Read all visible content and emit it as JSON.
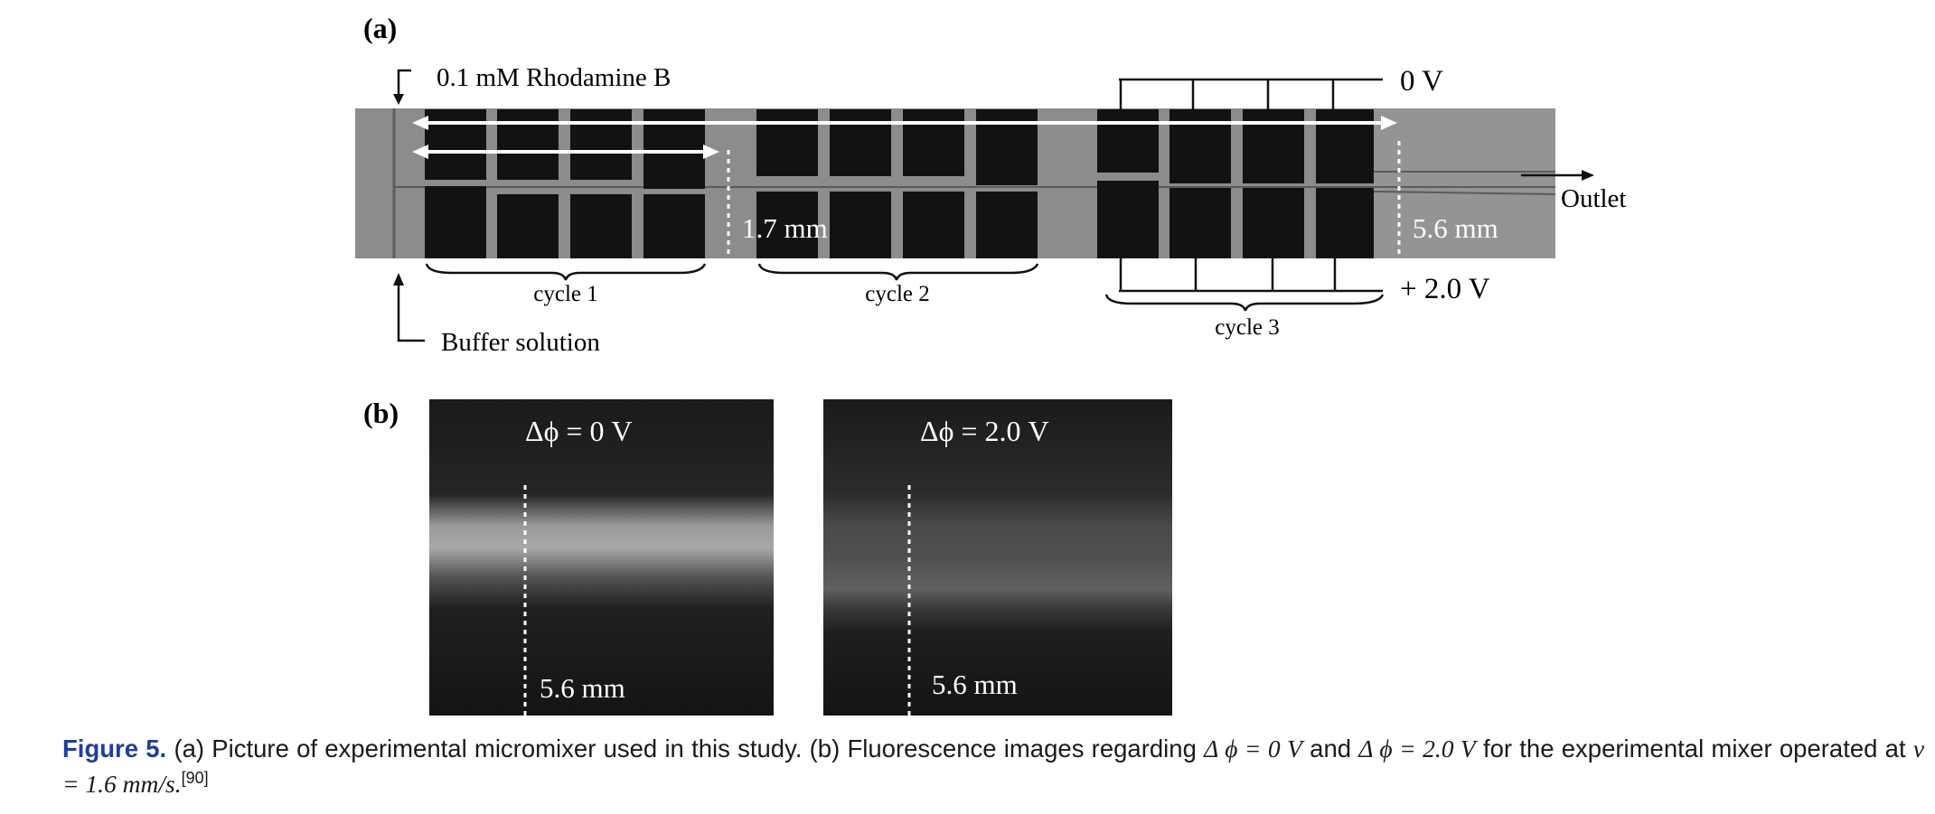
{
  "panel_a": {
    "label": "(a)",
    "inlet_top": "0.1 mM Rhodamine B",
    "inlet_bottom": "Buffer solution",
    "outlet": "Outlet",
    "voltage_top": "0 V",
    "voltage_bottom": "+ 2.0 V",
    "dist_short": "1.7 mm",
    "dist_long": "5.6 mm",
    "cycles": [
      "cycle 1",
      "cycle 2",
      "cycle 3"
    ]
  },
  "panel_b": {
    "label": "(b)",
    "images": [
      {
        "title": "Δϕ = 0 V",
        "dist": "5.6 mm"
      },
      {
        "title": "Δϕ = 2.0 V",
        "dist": "5.6 mm"
      }
    ]
  },
  "caption": {
    "figure_label": "Figure 5.",
    "text_part1": "(a) Picture of experimental micromixer used in this study. (b) Fluorescence images regarding",
    "math1": "Δ ϕ = 0 V",
    "text_and": "and",
    "math2": "Δ ϕ = 2.0 V",
    "text_part2": "for the experimental mixer operated at",
    "math3": "v = 1.6 mm/s.",
    "reference": "[90]"
  }
}
